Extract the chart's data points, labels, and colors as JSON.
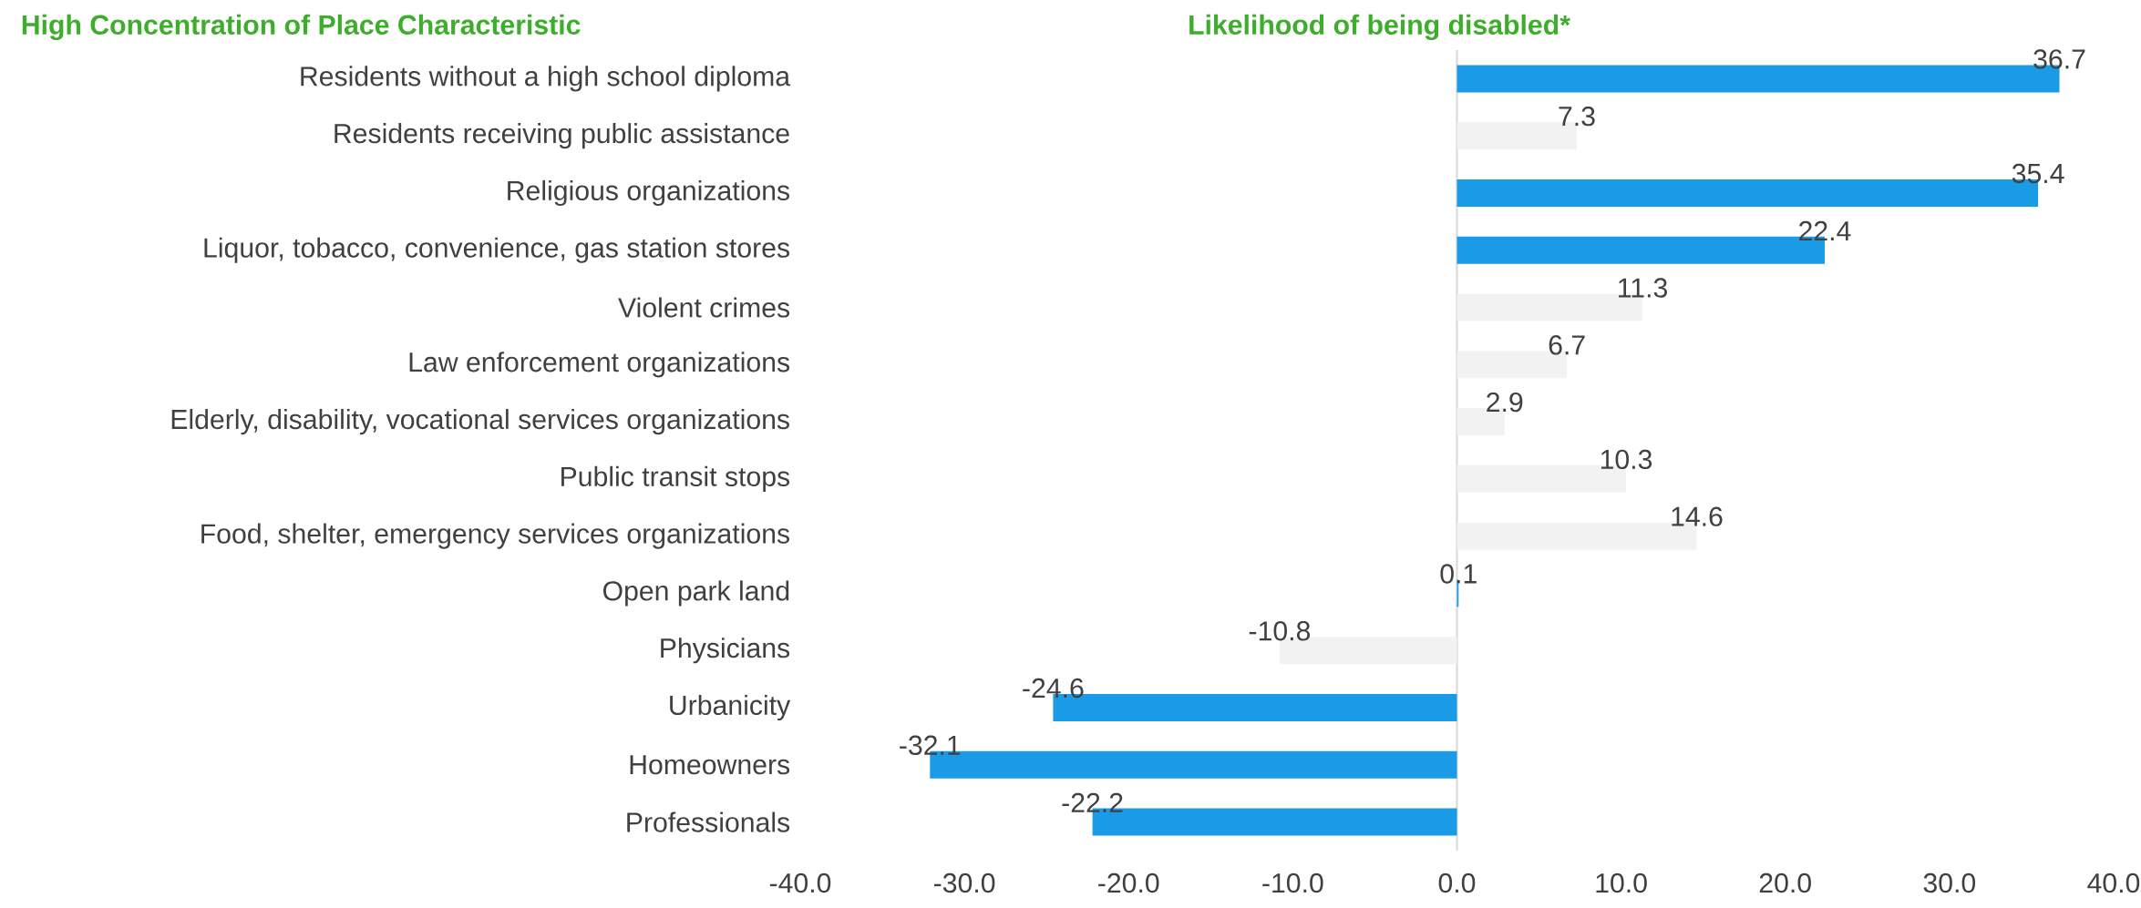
{
  "chart_data": {
    "type": "bar",
    "orientation": "horizontal",
    "title": "Likelihood of being disabled*",
    "ylabel": "High Concentration of Place Characteristic",
    "categories": [
      "Residents without a high school diploma",
      "Residents receiving public assistance",
      "Religious organizations",
      "Liquor, tobacco, convenience, gas station stores",
      "Violent crimes",
      "Law enforcement organizations",
      "Elderly, disability, vocational services organizations",
      "Public transit stops",
      "Food, shelter, emergency services organizations",
      "Open park land",
      "Physicians",
      "Urbanicity",
      "Homeowners",
      "Professionals"
    ],
    "values": [
      36.7,
      7.3,
      35.4,
      22.4,
      11.3,
      6.7,
      2.9,
      10.3,
      14.6,
      0.1,
      -10.8,
      -24.6,
      -32.1,
      -22.2
    ],
    "colors": [
      "#199be8",
      "#f2f2f2",
      "#199be8",
      "#199be8",
      "#f2f2f2",
      "#f2f2f2",
      "#f2f2f2",
      "#f2f2f2",
      "#f2f2f2",
      "#199be8",
      "#f2f2f2",
      "#199be8",
      "#199be8",
      "#199be8"
    ],
    "data_labels": true,
    "xlim": [
      -40,
      40
    ],
    "xticks": [
      {
        "value": -40,
        "label": "-40.0"
      },
      {
        "value": -30,
        "label": "-30.0"
      },
      {
        "value": -20,
        "label": "-20.0"
      },
      {
        "value": -10,
        "label": "-10.0"
      },
      {
        "value": 0,
        "label": "0.0"
      },
      {
        "value": 10,
        "label": "10.0"
      },
      {
        "value": 20,
        "label": "20.0"
      },
      {
        "value": 30,
        "label": "30.0"
      },
      {
        "value": 40,
        "label": "40.0"
      }
    ]
  }
}
